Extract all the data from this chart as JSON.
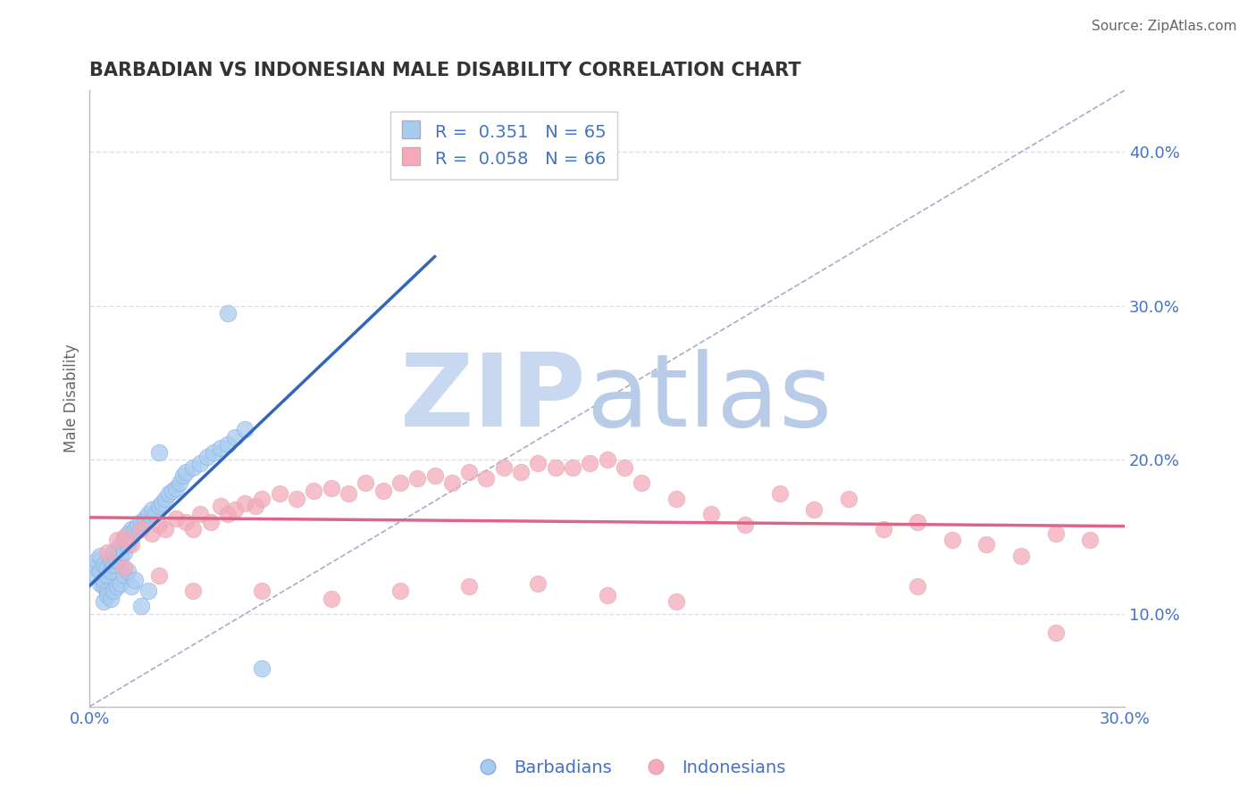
{
  "title": "BARBADIAN VS INDONESIAN MALE DISABILITY CORRELATION CHART",
  "source": "Source: ZipAtlas.com",
  "ylabel": "Male Disability",
  "y_ticks_right": [
    0.1,
    0.2,
    0.3,
    0.4
  ],
  "y_tick_labels_right": [
    "10.0%",
    "20.0%",
    "30.0%",
    "40.0%"
  ],
  "xlim": [
    0.0,
    0.3
  ],
  "ylim": [
    0.04,
    0.44
  ],
  "legend_label1": "Barbadians",
  "legend_label2": "Indonesians",
  "color_blue": "#A8CCF0",
  "color_blue_edge": "#88AADD",
  "color_blue_line": "#3366BB",
  "color_pink": "#F4AABB",
  "color_pink_edge": "#DDAAAA",
  "color_pink_line": "#DD6688",
  "color_diag": "#AAAACC",
  "watermark_zip": "ZIP",
  "watermark_atlas": "atlas",
  "watermark_color_zip": "#C8D8F0",
  "watermark_color_atlas": "#B8CCE8",
  "grid_color": "#DDDDEE",
  "background": "#FFFFFF",
  "barbadian_x": [
    0.001,
    0.002,
    0.002,
    0.003,
    0.003,
    0.003,
    0.004,
    0.004,
    0.004,
    0.005,
    0.005,
    0.005,
    0.006,
    0.006,
    0.007,
    0.007,
    0.008,
    0.008,
    0.009,
    0.009,
    0.01,
    0.01,
    0.011,
    0.011,
    0.012,
    0.012,
    0.013,
    0.014,
    0.015,
    0.016,
    0.017,
    0.018,
    0.019,
    0.02,
    0.021,
    0.022,
    0.023,
    0.024,
    0.025,
    0.026,
    0.027,
    0.028,
    0.03,
    0.032,
    0.034,
    0.036,
    0.038,
    0.04,
    0.042,
    0.045,
    0.004,
    0.005,
    0.006,
    0.007,
    0.008,
    0.009,
    0.01,
    0.011,
    0.012,
    0.013,
    0.015,
    0.017,
    0.02,
    0.04,
    0.05
  ],
  "barbadian_y": [
    0.13,
    0.125,
    0.135,
    0.12,
    0.128,
    0.138,
    0.118,
    0.132,
    0.122,
    0.115,
    0.125,
    0.13,
    0.128,
    0.135,
    0.132,
    0.14,
    0.135,
    0.142,
    0.138,
    0.145,
    0.14,
    0.148,
    0.145,
    0.152,
    0.15,
    0.155,
    0.155,
    0.158,
    0.16,
    0.162,
    0.165,
    0.168,
    0.165,
    0.17,
    0.172,
    0.175,
    0.178,
    0.18,
    0.182,
    0.185,
    0.19,
    0.192,
    0.195,
    0.198,
    0.202,
    0.205,
    0.208,
    0.21,
    0.215,
    0.22,
    0.108,
    0.112,
    0.11,
    0.115,
    0.118,
    0.12,
    0.125,
    0.128,
    0.118,
    0.122,
    0.105,
    0.115,
    0.205,
    0.295,
    0.065
  ],
  "indonesian_x": [
    0.005,
    0.008,
    0.01,
    0.012,
    0.015,
    0.018,
    0.02,
    0.022,
    0.025,
    0.028,
    0.03,
    0.032,
    0.035,
    0.038,
    0.04,
    0.042,
    0.045,
    0.048,
    0.05,
    0.055,
    0.06,
    0.065,
    0.07,
    0.075,
    0.08,
    0.085,
    0.09,
    0.095,
    0.1,
    0.105,
    0.11,
    0.115,
    0.12,
    0.125,
    0.13,
    0.135,
    0.14,
    0.145,
    0.15,
    0.155,
    0.16,
    0.17,
    0.18,
    0.19,
    0.2,
    0.21,
    0.22,
    0.23,
    0.24,
    0.25,
    0.26,
    0.27,
    0.28,
    0.01,
    0.02,
    0.03,
    0.05,
    0.07,
    0.09,
    0.11,
    0.13,
    0.15,
    0.17,
    0.24,
    0.28,
    0.29
  ],
  "indonesian_y": [
    0.14,
    0.148,
    0.15,
    0.145,
    0.155,
    0.152,
    0.158,
    0.155,
    0.162,
    0.16,
    0.155,
    0.165,
    0.16,
    0.17,
    0.165,
    0.168,
    0.172,
    0.17,
    0.175,
    0.178,
    0.175,
    0.18,
    0.182,
    0.178,
    0.185,
    0.18,
    0.185,
    0.188,
    0.19,
    0.185,
    0.192,
    0.188,
    0.195,
    0.192,
    0.198,
    0.195,
    0.195,
    0.198,
    0.2,
    0.195,
    0.185,
    0.175,
    0.165,
    0.158,
    0.178,
    0.168,
    0.175,
    0.155,
    0.16,
    0.148,
    0.145,
    0.138,
    0.152,
    0.13,
    0.125,
    0.115,
    0.115,
    0.11,
    0.115,
    0.118,
    0.12,
    0.112,
    0.108,
    0.118,
    0.088,
    0.148
  ]
}
